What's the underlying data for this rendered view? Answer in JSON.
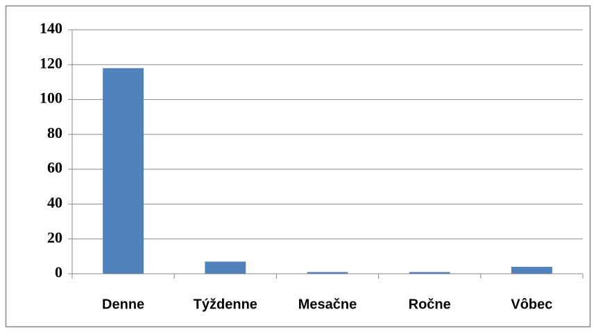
{
  "chart_data": {
    "type": "bar",
    "categories": [
      "Denne",
      "Týždenne",
      "Mesačne",
      "Ročne",
      "Vôbec"
    ],
    "values": [
      118,
      7,
      1,
      1,
      4
    ],
    "color": "#4f81bd",
    "ylim": [
      0,
      140
    ],
    "yticks": [
      0,
      20,
      40,
      60,
      80,
      100,
      120,
      140
    ],
    "grid": true
  }
}
